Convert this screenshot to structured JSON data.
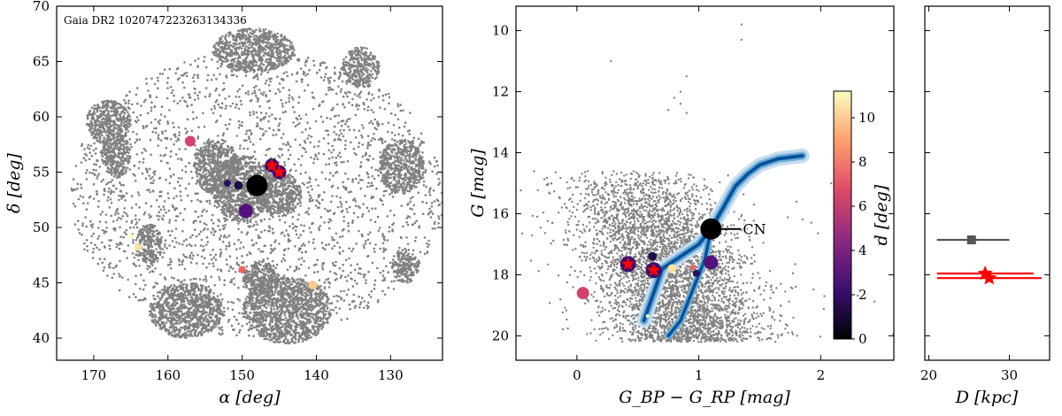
{
  "chart_data": [
    {
      "type": "scatter",
      "panel": "sky-position",
      "annotation": "Gaia DR2 1020747223263134336",
      "xlabel": "α [deg]",
      "ylabel": "δ [deg]",
      "xlim": [
        175,
        123
      ],
      "ylim": [
        38,
        70
      ],
      "xticks": [
        170,
        160,
        150,
        140,
        130
      ],
      "yticks": [
        40,
        45,
        50,
        55,
        60,
        65,
        70
      ],
      "background_color": "#808080",
      "dense_patches": [
        {
          "x": 168.0,
          "y": 59.5,
          "rx": 3.0,
          "ry": 2.0
        },
        {
          "x": 167.0,
          "y": 56.5,
          "rx": 2.0,
          "ry": 2.0
        },
        {
          "x": 148.5,
          "y": 66.0,
          "rx": 5.5,
          "ry": 2.0
        },
        {
          "x": 134.0,
          "y": 64.5,
          "rx": 2.5,
          "ry": 1.8
        },
        {
          "x": 153.5,
          "y": 55.5,
          "rx": 3.0,
          "ry": 2.5
        },
        {
          "x": 150.0,
          "y": 53.5,
          "rx": 4.0,
          "ry": 3.0
        },
        {
          "x": 145.0,
          "y": 53.0,
          "rx": 3.0,
          "ry": 2.0
        },
        {
          "x": 128.5,
          "y": 55.5,
          "rx": 3.0,
          "ry": 2.5
        },
        {
          "x": 162.5,
          "y": 48.5,
          "rx": 1.8,
          "ry": 1.8
        },
        {
          "x": 157.5,
          "y": 42.5,
          "rx": 5.0,
          "ry": 2.5
        },
        {
          "x": 144.0,
          "y": 42.5,
          "rx": 6.0,
          "ry": 3.0
        },
        {
          "x": 147.5,
          "y": 45.5,
          "rx": 2.5,
          "ry": 1.5
        },
        {
          "x": 128.0,
          "y": 46.5,
          "rx": 1.8,
          "ry": 1.5
        }
      ],
      "highlight_points": [
        {
          "x": 148.0,
          "y": 53.8,
          "size": 12,
          "color": "#000000"
        },
        {
          "x": 146.0,
          "y": 55.6,
          "size": 8,
          "color": "#3b0f70"
        },
        {
          "x": 145.0,
          "y": 55.0,
          "size": 8,
          "color": "#3b0f70"
        },
        {
          "x": 149.5,
          "y": 51.5,
          "size": 8,
          "color": "#51127c"
        },
        {
          "x": 150.5,
          "y": 53.8,
          "size": 5,
          "color": "#1d1147"
        },
        {
          "x": 152.0,
          "y": 54.0,
          "size": 4,
          "color": "#2c115f"
        },
        {
          "x": 157.0,
          "y": 57.8,
          "size": 6,
          "color": "#d3436e"
        },
        {
          "x": 150.0,
          "y": 46.2,
          "size": 4,
          "color": "#f1605d"
        },
        {
          "x": 165.0,
          "y": 49.2,
          "size": 3,
          "color": "#fcfdbf"
        },
        {
          "x": 164.0,
          "y": 48.2,
          "size": 4,
          "color": "#fde2a3"
        },
        {
          "x": 140.5,
          "y": 44.8,
          "size": 5,
          "color": "#fec98d"
        }
      ],
      "star_markers": [
        {
          "x": 146.0,
          "y": 55.6,
          "color": "#ff0000"
        },
        {
          "x": 145.0,
          "y": 55.0,
          "color": "#ff0000"
        }
      ]
    },
    {
      "type": "scatter",
      "panel": "color-magnitude",
      "xlabel": "G_BP − G_RP [mag]",
      "ylabel": "G [mag]",
      "xlim": [
        -0.5,
        2.6
      ],
      "ylim": [
        20.8,
        9.2
      ],
      "y_inverted": true,
      "xticks": [
        0,
        1,
        2
      ],
      "yticks": [
        10,
        12,
        14,
        16,
        18,
        20
      ],
      "background_color": "#808080",
      "isochrone": [
        [
          0.55,
          19.5
        ],
        [
          0.7,
          17.8
        ],
        [
          0.85,
          17.4
        ],
        [
          1.0,
          17.0
        ],
        [
          1.1,
          16.5
        ],
        [
          1.2,
          15.8
        ],
        [
          1.3,
          15.1
        ],
        [
          1.4,
          14.7
        ],
        [
          1.5,
          14.4
        ],
        [
          1.65,
          14.2
        ],
        [
          1.85,
          14.1
        ]
      ],
      "isochrone_lower": [
        [
          0.75,
          20.0
        ],
        [
          0.85,
          19.5
        ],
        [
          0.95,
          18.5
        ],
        [
          1.05,
          17.5
        ],
        [
          1.1,
          16.5
        ]
      ],
      "label_point": {
        "x": 1.1,
        "y": 16.5,
        "label": "CN"
      },
      "highlight_points": [
        {
          "x": 0.42,
          "y": 17.65,
          "size": 9,
          "color": "#3b0f70"
        },
        {
          "x": 0.63,
          "y": 17.85,
          "size": 9,
          "color": "#3b0f70"
        },
        {
          "x": 1.1,
          "y": 17.6,
          "size": 8,
          "color": "#51127c"
        },
        {
          "x": 0.62,
          "y": 17.4,
          "size": 5,
          "color": "#1d1147"
        },
        {
          "x": 0.78,
          "y": 17.8,
          "size": 5,
          "color": "#fde2a3"
        },
        {
          "x": 0.05,
          "y": 18.6,
          "size": 7,
          "color": "#d3436e"
        },
        {
          "x": 0.98,
          "y": 17.95,
          "size": 4,
          "color": "#2c115f"
        },
        {
          "x": 0.95,
          "y": 17.75,
          "size": 3,
          "color": "#f1605d"
        },
        {
          "x": 0.58,
          "y": 19.35,
          "size": 2,
          "color": "#fcfdbf"
        }
      ],
      "star_markers": [
        {
          "x": 0.42,
          "y": 17.65,
          "color": "#ff0000"
        },
        {
          "x": 0.63,
          "y": 17.85,
          "color": "#ff0000"
        }
      ],
      "colorbar": {
        "label": "d [deg]",
        "ticks": [
          0,
          2,
          4,
          6,
          8,
          10
        ],
        "range": [
          0,
          11.2
        ],
        "colormap": [
          "#000004",
          "#3b0f70",
          "#8c2981",
          "#de4968",
          "#fe9f6d",
          "#fcfdbf"
        ]
      }
    },
    {
      "type": "errorbar",
      "panel": "distance",
      "xlabel": "D [kpc]",
      "xlim": [
        19.5,
        35
      ],
      "xticks": [
        20,
        30
      ],
      "points": [
        {
          "x": 25.3,
          "xerr": [
            4.3,
            4.7
          ],
          "y": 0.66,
          "color": "#555555",
          "marker": "square"
        },
        {
          "x": 27.0,
          "xerr": [
            6.0,
            6.0
          ],
          "y": 0.755,
          "color": "#ff0000",
          "marker": "star"
        },
        {
          "x": 27.5,
          "xerr": [
            6.5,
            6.5
          ],
          "y": 0.768,
          "color": "#ff0000",
          "marker": "star"
        }
      ]
    }
  ]
}
